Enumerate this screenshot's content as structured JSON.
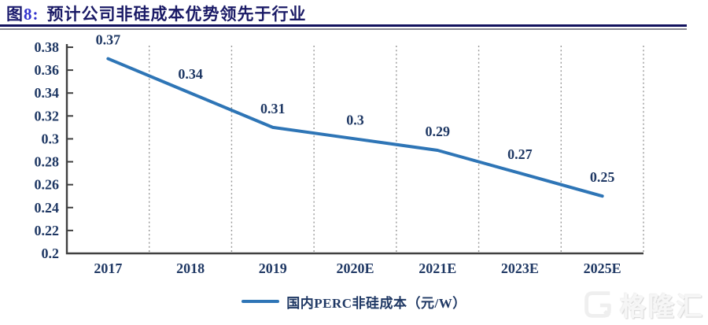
{
  "figure": {
    "label_prefix": "图",
    "label_number": "8:",
    "title": "预计公司非硅成本优势领先于行业"
  },
  "chart_data": {
    "type": "line",
    "title": "预计公司非硅成本优势领先于行业",
    "categories": [
      "2017",
      "2018",
      "2019",
      "2020E",
      "2021E",
      "2023E",
      "2025E"
    ],
    "series": [
      {
        "name": "国内PERC非硅成本（元/W）",
        "values": [
          0.37,
          0.34,
          0.31,
          0.3,
          0.29,
          0.27,
          0.25
        ]
      }
    ],
    "data_labels": [
      "0.37",
      "0.34",
      "0.31",
      "0.3",
      "0.29",
      "0.27",
      "0.25"
    ],
    "y_ticks": [
      "0.38",
      "0.36",
      "0.34",
      "0.32",
      "0.3",
      "0.28",
      "0.26",
      "0.24",
      "0.22",
      "0.2"
    ],
    "ylim": [
      0.2,
      0.38
    ],
    "y_step": 0.02,
    "xlabel": "",
    "ylabel": "",
    "grid": "vertical-dashed",
    "legend_position": "bottom",
    "line_color": "#2E75B6",
    "label_color": "#1F3864",
    "grid_color": "#999999",
    "axis_color": "#404040"
  },
  "legend": {
    "label": "国内PERC非硅成本（元/W）"
  },
  "watermark": {
    "text": "格隆汇",
    "logo": "gelonghui-logo"
  }
}
